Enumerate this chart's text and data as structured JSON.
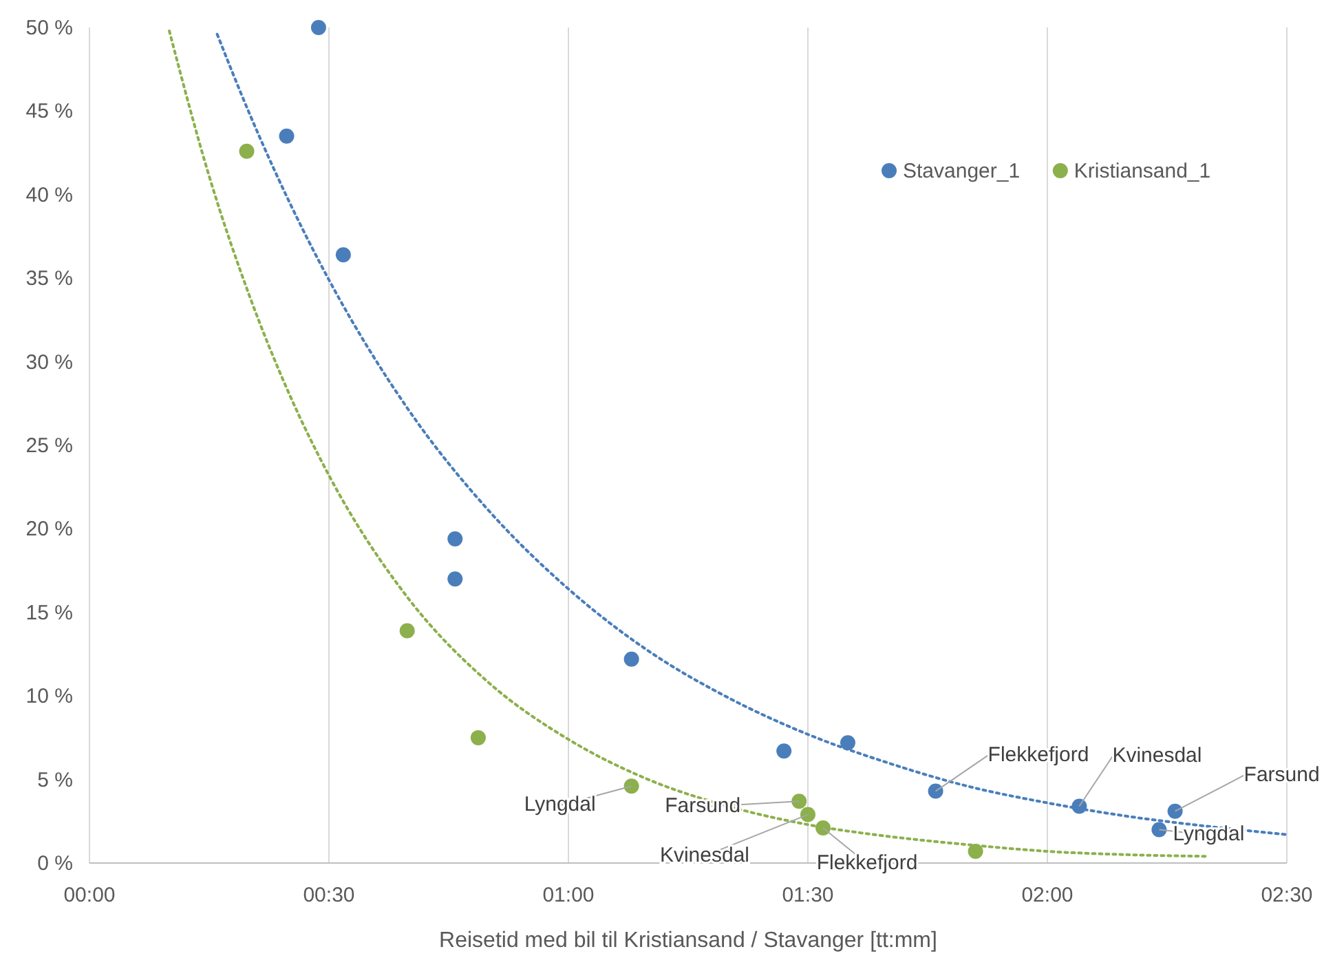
{
  "chart_data": {
    "type": "scatter",
    "xlabel": "Reisetid med bil til Kristiansand / Stavanger [tt:mm]",
    "xlim": [
      0,
      150
    ],
    "xticks": [
      {
        "value": 0,
        "label": "00:00"
      },
      {
        "value": 30,
        "label": "00:30"
      },
      {
        "value": 60,
        "label": "01:00"
      },
      {
        "value": 90,
        "label": "01:30"
      },
      {
        "value": 120,
        "label": "02:00"
      },
      {
        "value": 150,
        "label": "02:30"
      }
    ],
    "ylim": [
      0,
      50
    ],
    "yticks": [
      {
        "value": 0,
        "label": "0 %"
      },
      {
        "value": 5,
        "label": "5 %"
      },
      {
        "value": 10,
        "label": "10 %"
      },
      {
        "value": 15,
        "label": "15 %"
      },
      {
        "value": 20,
        "label": "20 %"
      },
      {
        "value": 25,
        "label": "25 %"
      },
      {
        "value": 30,
        "label": "30 %"
      },
      {
        "value": 35,
        "label": "35 %"
      },
      {
        "value": 40,
        "label": "40 %"
      },
      {
        "value": 45,
        "label": "45 %"
      },
      {
        "value": 50,
        "label": "50 %"
      }
    ],
    "grid": "x",
    "legend": "top right",
    "marker": "circle",
    "series": [
      {
        "name": "Stavanger_1",
        "color": "#4a7ebb",
        "x": [
          28.7,
          24.7,
          31.8,
          45.8,
          45.8,
          67.9,
          87,
          95,
          106,
          124,
          136,
          134
        ],
        "values": [
          50,
          43.5,
          36.4,
          19.4,
          17.0,
          12.2,
          6.7,
          7.2,
          4.3,
          3.4,
          3.1,
          2.0
        ]
      },
      {
        "name": "Kristiansand_1",
        "color": "#8cb04c",
        "x": [
          19.7,
          39.8,
          48.7,
          67.9,
          88.9,
          90,
          91.9,
          111
        ],
        "values": [
          42.6,
          13.9,
          7.5,
          4.6,
          3.7,
          2.9,
          2.1,
          0.7
        ]
      },
      {
        "type": "line",
        "color": "#4a7ebb",
        "line_style": "dotted",
        "marker": "none",
        "x": [
          16,
          20,
          25,
          30,
          40,
          50,
          60,
          70,
          80,
          90,
          100,
          110,
          120,
          130,
          140,
          150
        ],
        "values": [
          49.6,
          44.9,
          39.6,
          34.9,
          27.1,
          21.1,
          16.4,
          12.7,
          9.9,
          7.7,
          6.0,
          4.6,
          3.6,
          2.8,
          2.2,
          1.7
        ]
      },
      {
        "type": "line",
        "color": "#8cb04c",
        "line_style": "dotted",
        "marker": "none",
        "x": [
          10,
          15,
          20,
          25,
          30,
          40,
          50,
          60,
          70,
          80,
          90,
          100,
          110,
          120,
          130,
          140
        ],
        "values": [
          49.8,
          41.1,
          34.0,
          28.1,
          23.2,
          15.8,
          10.8,
          7.4,
          5.0,
          3.4,
          2.3,
          1.6,
          1.1,
          0.7,
          0.5,
          0.4
        ]
      }
    ],
    "annotations": [
      {
        "text": "Flekkefjord",
        "x": 106,
        "y": 4.3
      },
      {
        "text": "Kvinesdal",
        "x": 124,
        "y": 3.4
      },
      {
        "text": "Farsund",
        "x": 136,
        "y": 3.1
      },
      {
        "text": "Lyngdal",
        "x": 134,
        "y": 2.0
      },
      {
        "text": "Lyngdal",
        "x": 67.9,
        "y": 4.6
      },
      {
        "text": "Farsund",
        "x": 88.9,
        "y": 3.7
      },
      {
        "text": "Kvinesdal",
        "x": 90,
        "y": 2.9
      },
      {
        "text": "Flekkefjord",
        "x": 91.9,
        "y": 2.1
      }
    ]
  }
}
